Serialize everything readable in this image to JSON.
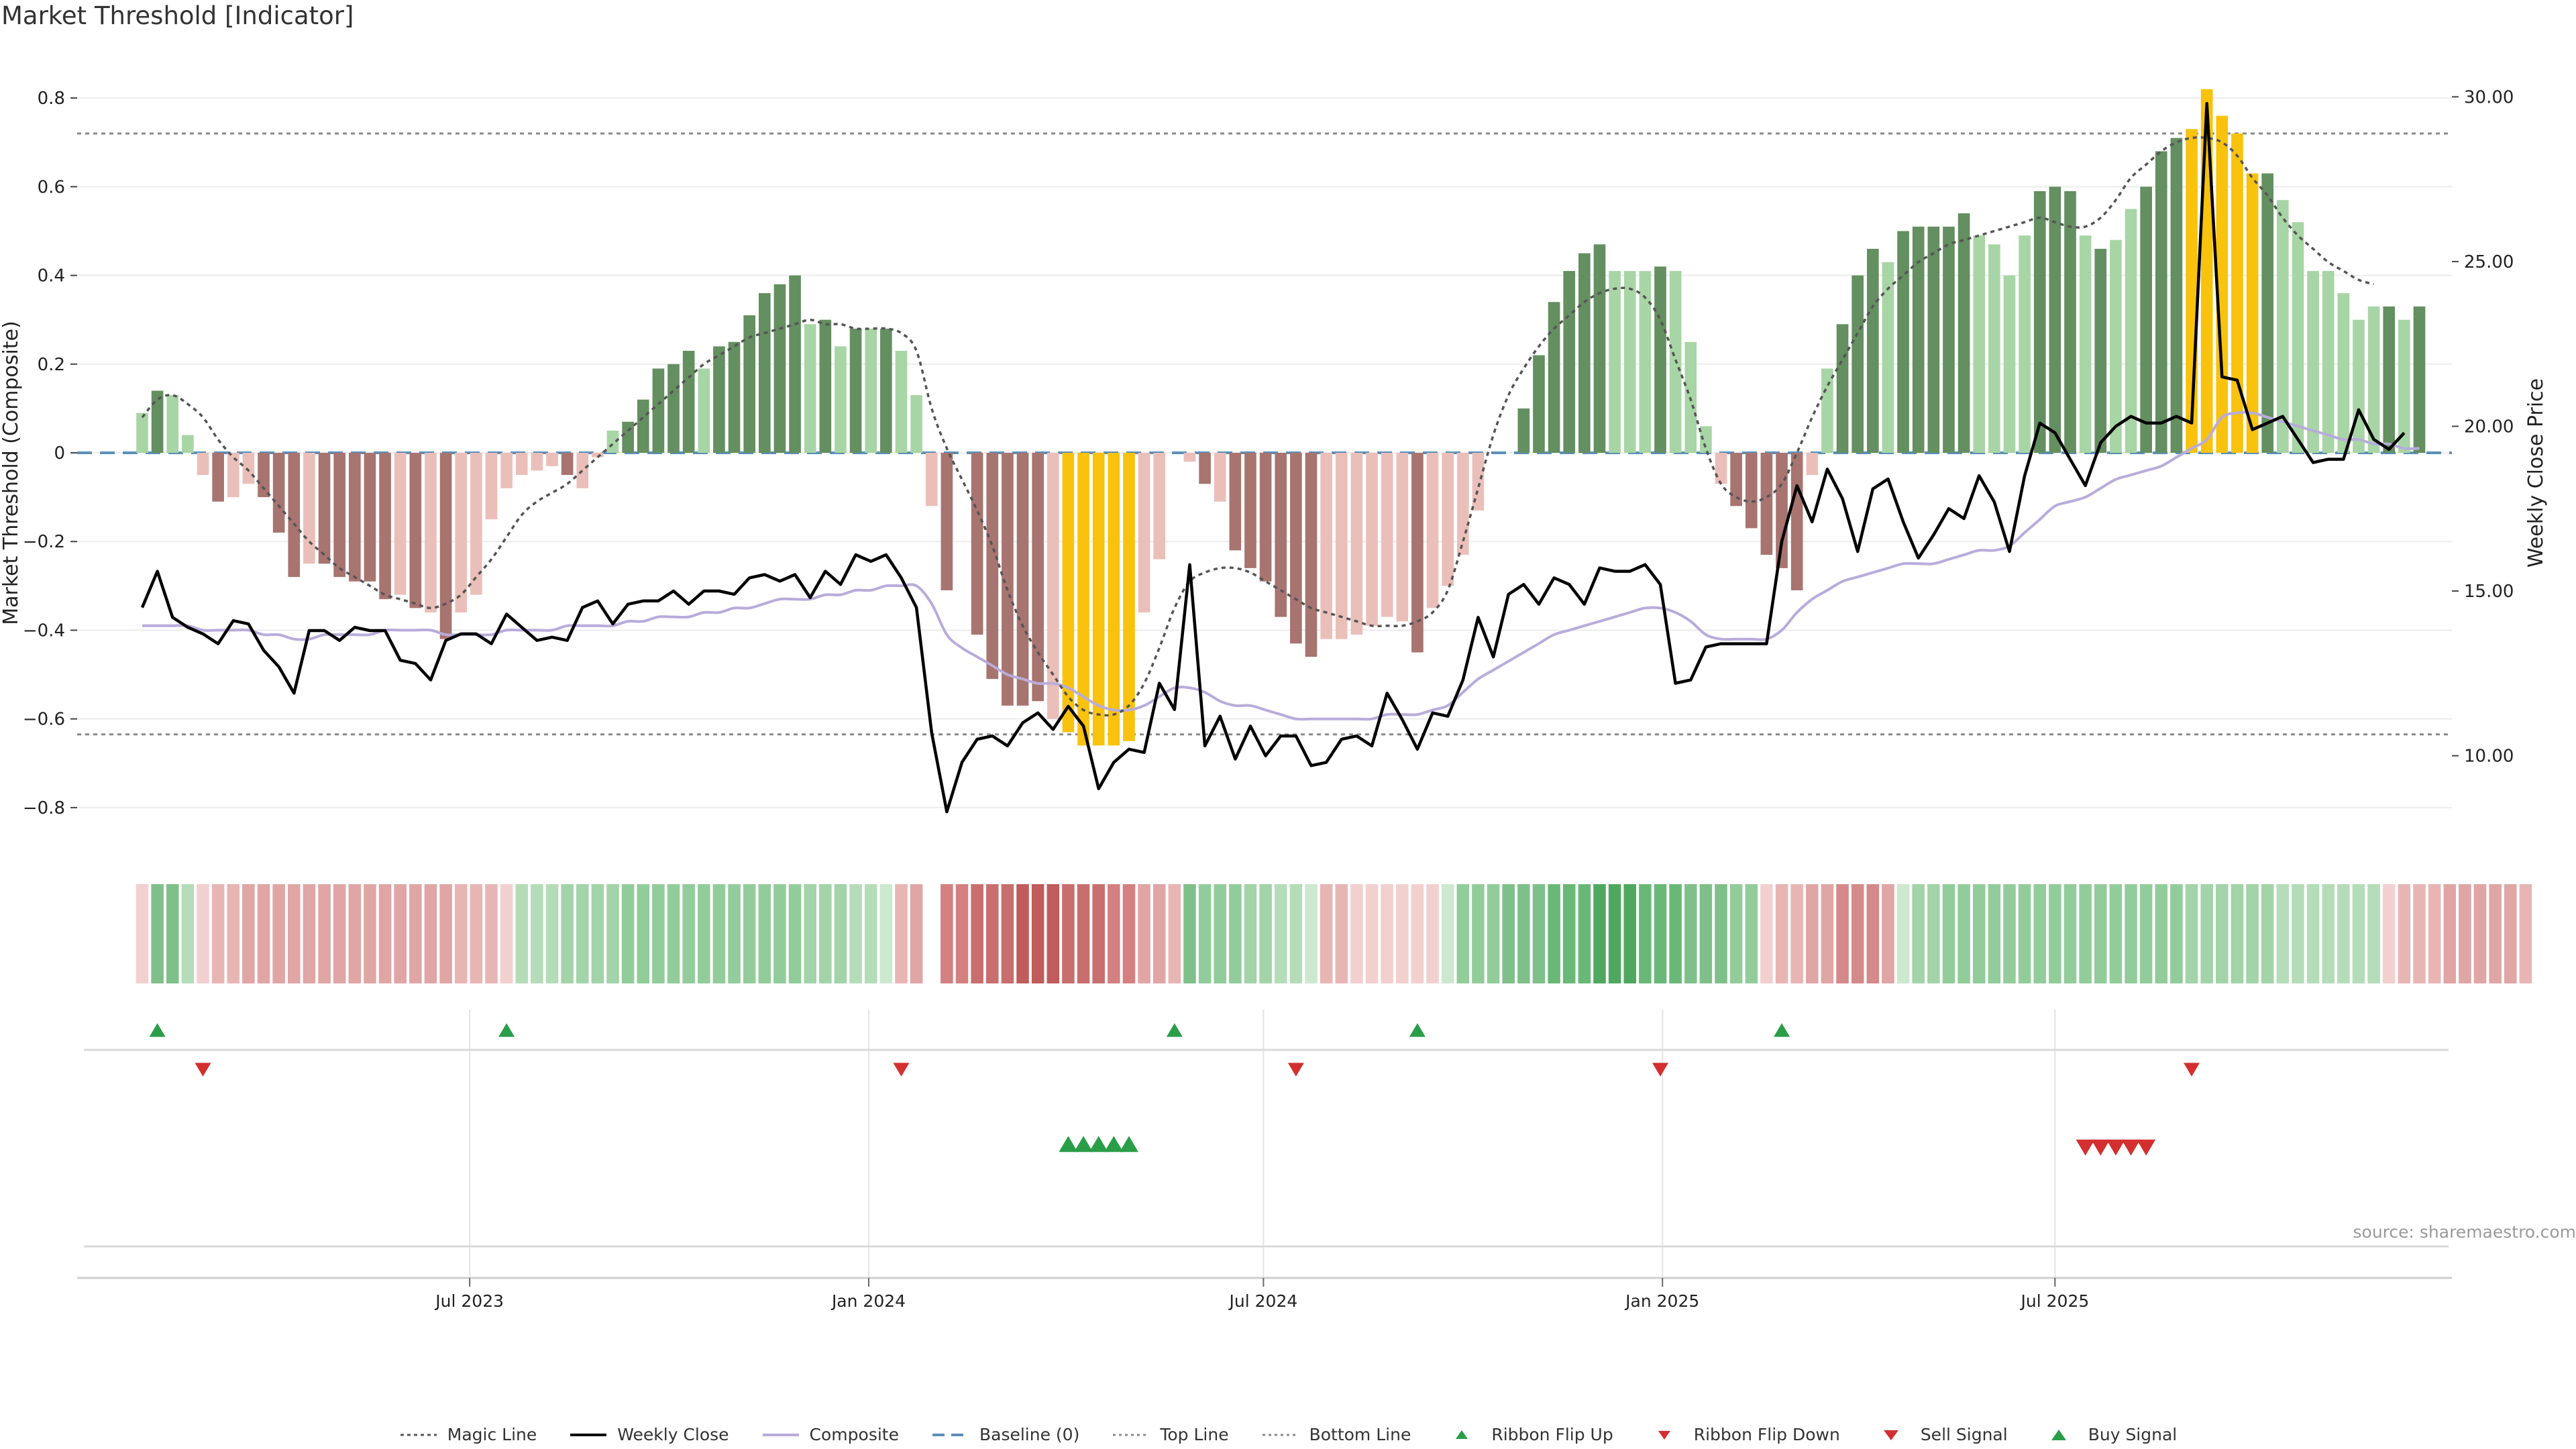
{
  "title": "Market Threshold [Indicator]",
  "source": "source: sharemaestro.com",
  "colors": {
    "pos_dark": "#648f60",
    "pos_light": "#a8d5a5",
    "neg_dark": "#a87470",
    "neg_light": "#ebbfb9",
    "extreme": "#f9c20c",
    "close": "#000000",
    "composite": "#b8acdb",
    "magic": "#555555",
    "baseline": "#5b8fb8",
    "threshold": "#8a8a8a",
    "buy": "#2a9d48",
    "sell": "#d32f2f"
  },
  "legend": [
    {
      "label": "Magic Line",
      "key": "magic"
    },
    {
      "label": "Weekly Close",
      "key": "close"
    },
    {
      "label": "Composite",
      "key": "composite"
    },
    {
      "label": "Baseline (0)",
      "key": "baseline"
    },
    {
      "label": "Top Line",
      "key": "top"
    },
    {
      "label": "Bottom Line",
      "key": "bottom"
    },
    {
      "label": "Ribbon Flip Up",
      "key": "flip_up"
    },
    {
      "label": "Ribbon Flip Down",
      "key": "flip_down"
    },
    {
      "label": "Sell Signal",
      "key": "sell"
    },
    {
      "label": "Buy Signal",
      "key": "buy"
    }
  ],
  "chart_data": {
    "type": "bar",
    "left_axis": {
      "label": "Market Threshold (Composite)",
      "range": [
        -0.9,
        0.9
      ],
      "ticks": [
        0.8,
        0.6,
        0.4,
        0.2,
        0,
        -0.2,
        -0.4,
        -0.6,
        -0.8
      ],
      "tick_labels": [
        "0.8",
        "0.6",
        "0.4",
        "0.2",
        "0",
        "−0.2",
        "−0.4",
        "−0.6",
        "−0.8"
      ]
    },
    "right_axis": {
      "label": "Weekly Close Price",
      "range": [
        7.08,
        31.31
      ],
      "ticks": [
        10,
        15,
        20,
        25,
        30
      ],
      "tick_labels": [
        "10.00",
        "15.00",
        "20.00",
        "25.00",
        "30.00"
      ]
    },
    "x_axis": {
      "range": [
        "2023-01-01",
        "2025-12-31"
      ],
      "ticks": [
        "2023-07-01",
        "2024-01-01",
        "2024-07-01",
        "2025-01-01",
        "2025-07-01"
      ],
      "tick_labels": [
        "Jul 2023",
        "Jan 2024",
        "Jul 2024",
        "Jan 2025",
        "Jul 2025"
      ]
    },
    "start_week": "2023-01-31",
    "top_line": 0.72,
    "bottom_line": -0.635,
    "bars": [
      0.09,
      0.14,
      0.13,
      0.04,
      -0.05,
      -0.11,
      -0.1,
      -0.07,
      -0.1,
      -0.18,
      -0.28,
      -0.25,
      -0.25,
      -0.28,
      -0.29,
      -0.29,
      -0.33,
      -0.32,
      -0.35,
      -0.36,
      -0.42,
      -0.36,
      -0.32,
      -0.15,
      -0.08,
      -0.05,
      -0.04,
      -0.03,
      -0.05,
      -0.08,
      -0.01,
      0.05,
      0.07,
      0.12,
      0.19,
      0.2,
      0.23,
      0.19,
      0.24,
      0.25,
      0.31,
      0.36,
      0.38,
      0.4,
      0.29,
      0.3,
      0.24,
      0.28,
      0.28,
      0.28,
      0.23,
      0.13,
      -0.12,
      -0.31,
      0.0,
      -0.41,
      -0.51,
      -0.57,
      -0.57,
      -0.56,
      -0.6,
      -0.63,
      -0.66,
      -0.66,
      -0.66,
      -0.65,
      -0.36,
      -0.24,
      0.0,
      -0.02,
      -0.07,
      -0.11,
      -0.22,
      -0.26,
      -0.29,
      -0.37,
      -0.43,
      -0.46,
      -0.42,
      -0.42,
      -0.41,
      -0.39,
      -0.37,
      -0.38,
      -0.45,
      -0.35,
      -0.3,
      -0.23,
      -0.13,
      0.0,
      0.0,
      0.1,
      0.22,
      0.34,
      0.41,
      0.45,
      0.47,
      0.41,
      0.41,
      0.41,
      0.42,
      0.41,
      0.25,
      0.06,
      -0.07,
      -0.12,
      -0.17,
      -0.23,
      -0.26,
      -0.31,
      -0.05,
      0.19,
      0.29,
      0.4,
      0.46,
      0.43,
      0.5,
      0.51,
      0.51,
      0.51,
      0.54,
      0.49,
      0.47,
      0.4,
      0.49,
      0.59,
      0.6,
      0.59,
      0.49,
      0.46,
      0.48,
      0.55,
      0.6,
      0.68,
      0.71,
      0.73,
      0.82,
      0.76,
      0.72,
      0.63,
      0.63,
      0.57,
      0.52,
      0.41,
      0.41,
      0.36,
      0.3,
      0.33,
      0.33,
      0.3,
      0.33
    ],
    "bar_shades": [
      "L",
      "D",
      "L",
      "L",
      "L",
      "D",
      "L",
      "L",
      "D",
      "D",
      "D",
      "L",
      "D",
      "D",
      "D",
      "D",
      "D",
      "L",
      "D",
      "L",
      "D",
      "L",
      "L",
      "L",
      "L",
      "L",
      "L",
      "L",
      "D",
      "L",
      "L",
      "L",
      "D",
      "D",
      "D",
      "D",
      "D",
      "L",
      "D",
      "D",
      "D",
      "D",
      "D",
      "D",
      "L",
      "D",
      "L",
      "D",
      "L",
      "D",
      "L",
      "L",
      "L",
      "D",
      "L",
      "D",
      "D",
      "D",
      "D",
      "D",
      "L",
      "E",
      "E",
      "E",
      "E",
      "E",
      "L",
      "L",
      "L",
      "L",
      "D",
      "L",
      "D",
      "D",
      "D",
      "D",
      "D",
      "D",
      "L",
      "L",
      "L",
      "L",
      "L",
      "L",
      "D",
      "L",
      "L",
      "L",
      "L",
      "L",
      "L",
      "D",
      "D",
      "D",
      "D",
      "D",
      "D",
      "L",
      "L",
      "L",
      "D",
      "L",
      "L",
      "L",
      "L",
      "D",
      "D",
      "D",
      "D",
      "D",
      "L",
      "L",
      "D",
      "D",
      "D",
      "L",
      "D",
      "D",
      "D",
      "D",
      "D",
      "L",
      "L",
      "L",
      "L",
      "D",
      "D",
      "D",
      "L",
      "D",
      "L",
      "L",
      "D",
      "D",
      "D",
      "E",
      "E",
      "E",
      "E",
      "E",
      "D",
      "L",
      "L",
      "L",
      "L",
      "L",
      "L",
      "L",
      "D",
      "L",
      "D"
    ],
    "weekly_close": [
      14.5,
      15.6,
      14.2,
      13.9,
      13.7,
      13.4,
      14.1,
      14.0,
      13.2,
      12.7,
      11.9,
      13.8,
      13.8,
      13.5,
      13.9,
      13.8,
      13.8,
      12.9,
      12.8,
      12.3,
      13.5,
      13.7,
      13.7,
      13.4,
      14.3,
      13.9,
      13.5,
      13.6,
      13.5,
      14.5,
      14.7,
      14.0,
      14.6,
      14.7,
      14.7,
      15.0,
      14.6,
      15.0,
      15.0,
      14.9,
      15.4,
      15.5,
      15.3,
      15.5,
      14.8,
      15.6,
      15.2,
      16.1,
      15.9,
      16.1,
      15.4,
      14.5,
      10.7,
      8.3,
      9.8,
      10.5,
      10.6,
      10.3,
      11.0,
      11.3,
      10.8,
      11.5,
      10.9,
      9.0,
      9.8,
      10.2,
      10.1,
      12.2,
      11.4,
      15.8,
      10.3,
      11.2,
      9.9,
      10.9,
      10.0,
      10.6,
      10.6,
      9.7,
      9.8,
      10.5,
      10.6,
      10.3,
      11.9,
      11.1,
      10.2,
      11.3,
      11.2,
      12.3,
      14.2,
      13.0,
      14.9,
      15.2,
      14.6,
      15.4,
      15.2,
      14.6,
      15.7,
      15.6,
      15.6,
      15.8,
      15.2,
      12.2,
      12.3,
      13.3,
      13.4,
      13.4,
      13.4,
      13.4,
      16.5,
      18.2,
      17.1,
      18.7,
      17.8,
      16.2,
      18.1,
      18.4,
      17.1,
      16.0,
      16.7,
      17.5,
      17.2,
      18.5,
      17.7,
      16.2,
      18.5,
      20.1,
      19.8,
      19.0,
      18.2,
      19.5,
      20.0,
      20.3,
      20.1,
      20.1,
      20.3,
      20.1,
      29.8,
      21.5,
      21.4,
      19.9,
      20.1,
      20.3,
      19.6,
      18.9,
      19.0,
      19.0,
      20.5,
      19.6,
      19.3,
      19.8
    ],
    "composite": [
      -0.39,
      -0.39,
      -0.39,
      -0.39,
      -0.4,
      -0.4,
      -0.4,
      -0.4,
      -0.41,
      -0.41,
      -0.42,
      -0.42,
      -0.41,
      -0.41,
      -0.41,
      -0.41,
      -0.4,
      -0.4,
      -0.4,
      -0.4,
      -0.41,
      -0.41,
      -0.41,
      -0.41,
      -0.4,
      -0.4,
      -0.4,
      -0.4,
      -0.39,
      -0.39,
      -0.39,
      -0.39,
      -0.38,
      -0.38,
      -0.37,
      -0.37,
      -0.37,
      -0.36,
      -0.36,
      -0.35,
      -0.35,
      -0.34,
      -0.33,
      -0.33,
      -0.33,
      -0.32,
      -0.32,
      -0.31,
      -0.31,
      -0.3,
      -0.3,
      -0.3,
      -0.34,
      -0.41,
      -0.44,
      -0.46,
      -0.48,
      -0.5,
      -0.51,
      -0.52,
      -0.52,
      -0.53,
      -0.55,
      -0.57,
      -0.58,
      -0.58,
      -0.57,
      -0.55,
      -0.53,
      -0.53,
      -0.54,
      -0.56,
      -0.57,
      -0.57,
      -0.58,
      -0.59,
      -0.6,
      -0.6,
      -0.6,
      -0.6,
      -0.6,
      -0.6,
      -0.59,
      -0.59,
      -0.59,
      -0.58,
      -0.57,
      -0.54,
      -0.51,
      -0.49,
      -0.47,
      -0.45,
      -0.43,
      -0.41,
      -0.4,
      -0.39,
      -0.38,
      -0.37,
      -0.36,
      -0.35,
      -0.35,
      -0.36,
      -0.38,
      -0.41,
      -0.42,
      -0.42,
      -0.42,
      -0.42,
      -0.4,
      -0.36,
      -0.33,
      -0.31,
      -0.29,
      -0.28,
      -0.27,
      -0.26,
      -0.25,
      -0.25,
      -0.25,
      -0.24,
      -0.23,
      -0.22,
      -0.22,
      -0.21,
      -0.18,
      -0.15,
      -0.12,
      -0.11,
      -0.1,
      -0.08,
      -0.06,
      -0.05,
      -0.04,
      -0.03,
      -0.01,
      0.01,
      0.03,
      0.08,
      0.09,
      0.09,
      0.08,
      0.07,
      0.06,
      0.05,
      0.04,
      0.03,
      0.03,
      0.02,
      0.02,
      0.01,
      0.01
    ],
    "magic_line": [
      0.08,
      0.12,
      0.13,
      0.11,
      0.08,
      0.03,
      -0.01,
      -0.04,
      -0.08,
      -0.12,
      -0.16,
      -0.2,
      -0.23,
      -0.26,
      -0.28,
      -0.3,
      -0.32,
      -0.33,
      -0.34,
      -0.35,
      -0.34,
      -0.32,
      -0.28,
      -0.24,
      -0.19,
      -0.14,
      -0.11,
      -0.09,
      -0.07,
      -0.04,
      -0.01,
      0.02,
      0.05,
      0.08,
      0.11,
      0.14,
      0.17,
      0.2,
      0.22,
      0.24,
      0.26,
      0.27,
      0.28,
      0.29,
      0.3,
      0.29,
      0.29,
      0.28,
      0.28,
      0.28,
      0.27,
      0.23,
      0.1,
      0.01,
      -0.06,
      -0.13,
      -0.21,
      -0.31,
      -0.39,
      -0.45,
      -0.5,
      -0.55,
      -0.58,
      -0.59,
      -0.59,
      -0.57,
      -0.52,
      -0.44,
      -0.35,
      -0.29,
      -0.27,
      -0.26,
      -0.26,
      -0.27,
      -0.29,
      -0.31,
      -0.33,
      -0.35,
      -0.36,
      -0.37,
      -0.38,
      -0.39,
      -0.39,
      -0.39,
      -0.38,
      -0.36,
      -0.31,
      -0.2,
      -0.08,
      0.04,
      0.13,
      0.19,
      0.24,
      0.28,
      0.31,
      0.34,
      0.36,
      0.37,
      0.37,
      0.35,
      0.3,
      0.21,
      0.12,
      0.01,
      -0.07,
      -0.1,
      -0.11,
      -0.1,
      -0.07,
      0.0,
      0.08,
      0.15,
      0.21,
      0.27,
      0.33,
      0.37,
      0.4,
      0.43,
      0.45,
      0.47,
      0.48,
      0.49,
      0.5,
      0.51,
      0.52,
      0.53,
      0.52,
      0.51,
      0.51,
      0.53,
      0.57,
      0.62,
      0.65,
      0.68,
      0.7,
      0.71,
      0.71,
      0.7,
      0.67,
      0.62,
      0.58,
      0.53,
      0.49,
      0.46,
      0.43,
      0.41,
      0.39,
      0.38
    ],
    "ribbon": [
      {
        "color": "#f2d0d0",
        "n": 1
      },
      {
        "color": "#7fc08a",
        "n": 2
      },
      {
        "color": "#b5dcb8",
        "n": 1
      },
      {
        "color": "#f2d0d0",
        "n": 1
      },
      {
        "color": "#e8b5b5",
        "n": 2
      },
      {
        "color": "#e0a5a5",
        "n": 6
      },
      {
        "color": "#e0a5a5",
        "n": 8
      },
      {
        "color": "#e8b5b5",
        "n": 3
      },
      {
        "color": "#f2d0d0",
        "n": 1
      },
      {
        "color": "#b5dcb8",
        "n": 3
      },
      {
        "color": "#a3d3a8",
        "n": 4
      },
      {
        "color": "#93cc9b",
        "n": 12
      },
      {
        "color": "#a3d3a8",
        "n": 3
      },
      {
        "color": "#b5dcb8",
        "n": 2
      },
      {
        "color": "#cce8cf",
        "n": 1
      },
      {
        "color": "#e8b5b5",
        "n": 1
      },
      {
        "color": "#e0a5a5",
        "n": 1
      },
      {
        "color": "#ffffff",
        "n": 1
      },
      {
        "color": "#d48080",
        "n": 2
      },
      {
        "color": "#c96e6e",
        "n": 3
      },
      {
        "color": "#c05c5c",
        "n": 3
      },
      {
        "color": "#c96e6e",
        "n": 3
      },
      {
        "color": "#d48080",
        "n": 2
      },
      {
        "color": "#e0a5a5",
        "n": 2
      },
      {
        "color": "#e8b5b5",
        "n": 1
      },
      {
        "color": "#7fc08a",
        "n": 1
      },
      {
        "color": "#93cc9b",
        "n": 3
      },
      {
        "color": "#a3d3a8",
        "n": 2
      },
      {
        "color": "#b5dcb8",
        "n": 2
      },
      {
        "color": "#cce8cf",
        "n": 1
      },
      {
        "color": "#e8b5b5",
        "n": 2
      },
      {
        "color": "#f2d0d0",
        "n": 6
      },
      {
        "color": "#cce8cf",
        "n": 1
      },
      {
        "color": "#93cc9b",
        "n": 3
      },
      {
        "color": "#7fc08a",
        "n": 3
      },
      {
        "color": "#6ab878",
        "n": 3
      },
      {
        "color": "#4fa860",
        "n": 3
      },
      {
        "color": "#6ab878",
        "n": 3
      },
      {
        "color": "#7fc08a",
        "n": 3
      },
      {
        "color": "#93cc9b",
        "n": 2
      },
      {
        "color": "#f2d0d0",
        "n": 1
      },
      {
        "color": "#e8b5b5",
        "n": 2
      },
      {
        "color": "#e0a5a5",
        "n": 2
      },
      {
        "color": "#d48a8a",
        "n": 3
      },
      {
        "color": "#e0a5a5",
        "n": 1
      },
      {
        "color": "#cce8cf",
        "n": 1
      },
      {
        "color": "#a3d3a8",
        "n": 2
      },
      {
        "color": "#93cc9b",
        "n": 16
      },
      {
        "color": "#a3d3a8",
        "n": 6
      },
      {
        "color": "#b5dcb8",
        "n": 7
      },
      {
        "color": "#f2d0d0",
        "n": 1
      },
      {
        "color": "#e8b5b5",
        "n": 3
      },
      {
        "color": "#e0a5a5",
        "n": 5
      },
      {
        "color": "#e8b5b5",
        "n": 1
      }
    ],
    "ribbon_flip_up": [
      1,
      24,
      68,
      84,
      108
    ],
    "ribbon_flip_down": [
      4,
      50,
      76,
      100,
      135
    ],
    "buy_signal": [
      61,
      62,
      63,
      64,
      65
    ],
    "sell_signal": [
      128,
      129,
      130,
      131,
      132
    ]
  }
}
